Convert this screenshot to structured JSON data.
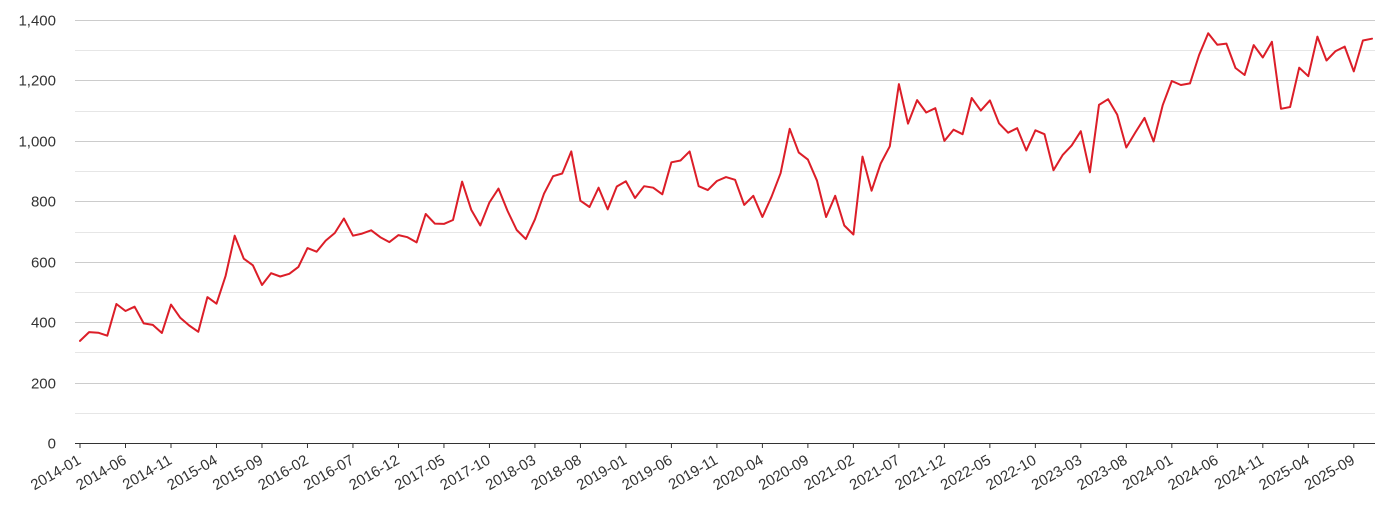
{
  "chart_data": {
    "type": "line",
    "title": "",
    "xlabel": "",
    "ylabel": "",
    "ylim": [
      0,
      1400
    ],
    "y_ticks": [
      "0",
      "200",
      "400",
      "600",
      "800",
      "1,000",
      "1,200",
      "1,400"
    ],
    "y_tick_values": [
      0,
      200,
      400,
      600,
      800,
      1000,
      1200,
      1400
    ],
    "x_tick_labels": [
      "2014-01",
      "2014-06",
      "2014-11",
      "2015-04",
      "2015-09",
      "2016-02",
      "2016-07",
      "2016-12",
      "2017-05",
      "2017-10",
      "2018-03",
      "2018-08",
      "2019-01",
      "2019-06",
      "2019-11",
      "2020-04",
      "2020-09",
      "2021-02",
      "2021-07",
      "2021-12",
      "2022-05",
      "2022-10",
      "2023-03",
      "2023-08",
      "2024-01",
      "2024-06",
      "2024-11",
      "2025-04",
      "2025-09"
    ],
    "grid": true,
    "legend": "none",
    "colors": {
      "series": "#dc1e28",
      "grid": "#cccccc",
      "minor_grid": "#e6e6e6",
      "axis": "#333333",
      "text": "#333333"
    },
    "series": [
      {
        "x": [
          "2014-01",
          "2014-02",
          "2014-03",
          "2014-04",
          "2014-05",
          "2014-06",
          "2014-07",
          "2014-08",
          "2014-09",
          "2014-10",
          "2014-11",
          "2014-12",
          "2015-01",
          "2015-02",
          "2015-03",
          "2015-04",
          "2015-05",
          "2015-06",
          "2015-07",
          "2015-08",
          "2015-09",
          "2015-10",
          "2015-11",
          "2015-12",
          "2016-01",
          "2016-02",
          "2016-03",
          "2016-04",
          "2016-05",
          "2016-06",
          "2016-07",
          "2016-08",
          "2016-09",
          "2016-10",
          "2016-11",
          "2016-12",
          "2017-01",
          "2017-02",
          "2017-03",
          "2017-04",
          "2017-05",
          "2017-06",
          "2017-07",
          "2017-08",
          "2017-09",
          "2017-10",
          "2017-11",
          "2017-12",
          "2018-01",
          "2018-02",
          "2018-03",
          "2018-04",
          "2018-05",
          "2018-06",
          "2018-07",
          "2018-08",
          "2018-09",
          "2018-10",
          "2018-11",
          "2018-12",
          "2019-01",
          "2019-02",
          "2019-03",
          "2019-04",
          "2019-05",
          "2019-06",
          "2019-07",
          "2019-08",
          "2019-09",
          "2019-10",
          "2019-11",
          "2019-12",
          "2020-01",
          "2020-02",
          "2020-03",
          "2020-04",
          "2020-05",
          "2020-06",
          "2020-07",
          "2020-08",
          "2020-09",
          "2020-10",
          "2020-11",
          "2020-12",
          "2021-01",
          "2021-02",
          "2021-03",
          "2021-04",
          "2021-05",
          "2021-06",
          "2021-07",
          "2021-08",
          "2021-09",
          "2021-10",
          "2021-11",
          "2021-12",
          "2022-01",
          "2022-02",
          "2022-03",
          "2022-04",
          "2022-05",
          "2022-06",
          "2022-07",
          "2022-08",
          "2022-09",
          "2022-10",
          "2022-11",
          "2022-12",
          "2023-01",
          "2023-02",
          "2023-03",
          "2023-04",
          "2023-05",
          "2023-06",
          "2023-07",
          "2023-08",
          "2023-09",
          "2023-10",
          "2023-11",
          "2023-12",
          "2024-01",
          "2024-02",
          "2024-03",
          "2024-04",
          "2024-05",
          "2024-06",
          "2024-07",
          "2024-08",
          "2024-09",
          "2024-10",
          "2024-11",
          "2024-12",
          "2025-01",
          "2025-02",
          "2025-03",
          "2025-04",
          "2025-05",
          "2025-06",
          "2025-07",
          "2025-08",
          "2025-09",
          "2025-10",
          "2025-11"
        ],
        "values": [
          338,
          367,
          365,
          355,
          460,
          437,
          451,
          396,
          391,
          364,
          458,
          415,
          389,
          368,
          483,
          461,
          553,
          686,
          610,
          588,
          523,
          562,
          551,
          560,
          583,
          645,
          633,
          670,
          695,
          743,
          686,
          693,
          704,
          681,
          665,
          688,
          681,
          664,
          758,
          726,
          725,
          738,
          865,
          772,
          720,
          796,
          842,
          768,
          705,
          675,
          740,
          825,
          883,
          892,
          965,
          802,
          781,
          845,
          773,
          849,
          866,
          811,
          850,
          845,
          823,
          929,
          935,
          965,
          850,
          837,
          867,
          880,
          871,
          788,
          818,
          748,
          815,
          893,
          1040,
          961,
          938,
          868,
          748,
          818,
          720,
          690,
          948,
          835,
          925,
          982,
          1188,
          1057,
          1135,
          1094,
          1108,
          1000,
          1037,
          1022,
          1142,
          1100,
          1134,
          1058,
          1027,
          1042,
          968,
          1035,
          1022,
          903,
          953,
          985,
          1032,
          896,
          1119,
          1138,
          1087,
          978,
          1028,
          1076,
          998,
          1118,
          1198,
          1185,
          1190,
          1284,
          1356,
          1318,
          1322,
          1241,
          1218,
          1317,
          1276,
          1328,
          1106,
          1112,
          1242,
          1214,
          1345,
          1266,
          1297,
          1312,
          1230,
          1332,
          1338
        ]
      }
    ]
  }
}
